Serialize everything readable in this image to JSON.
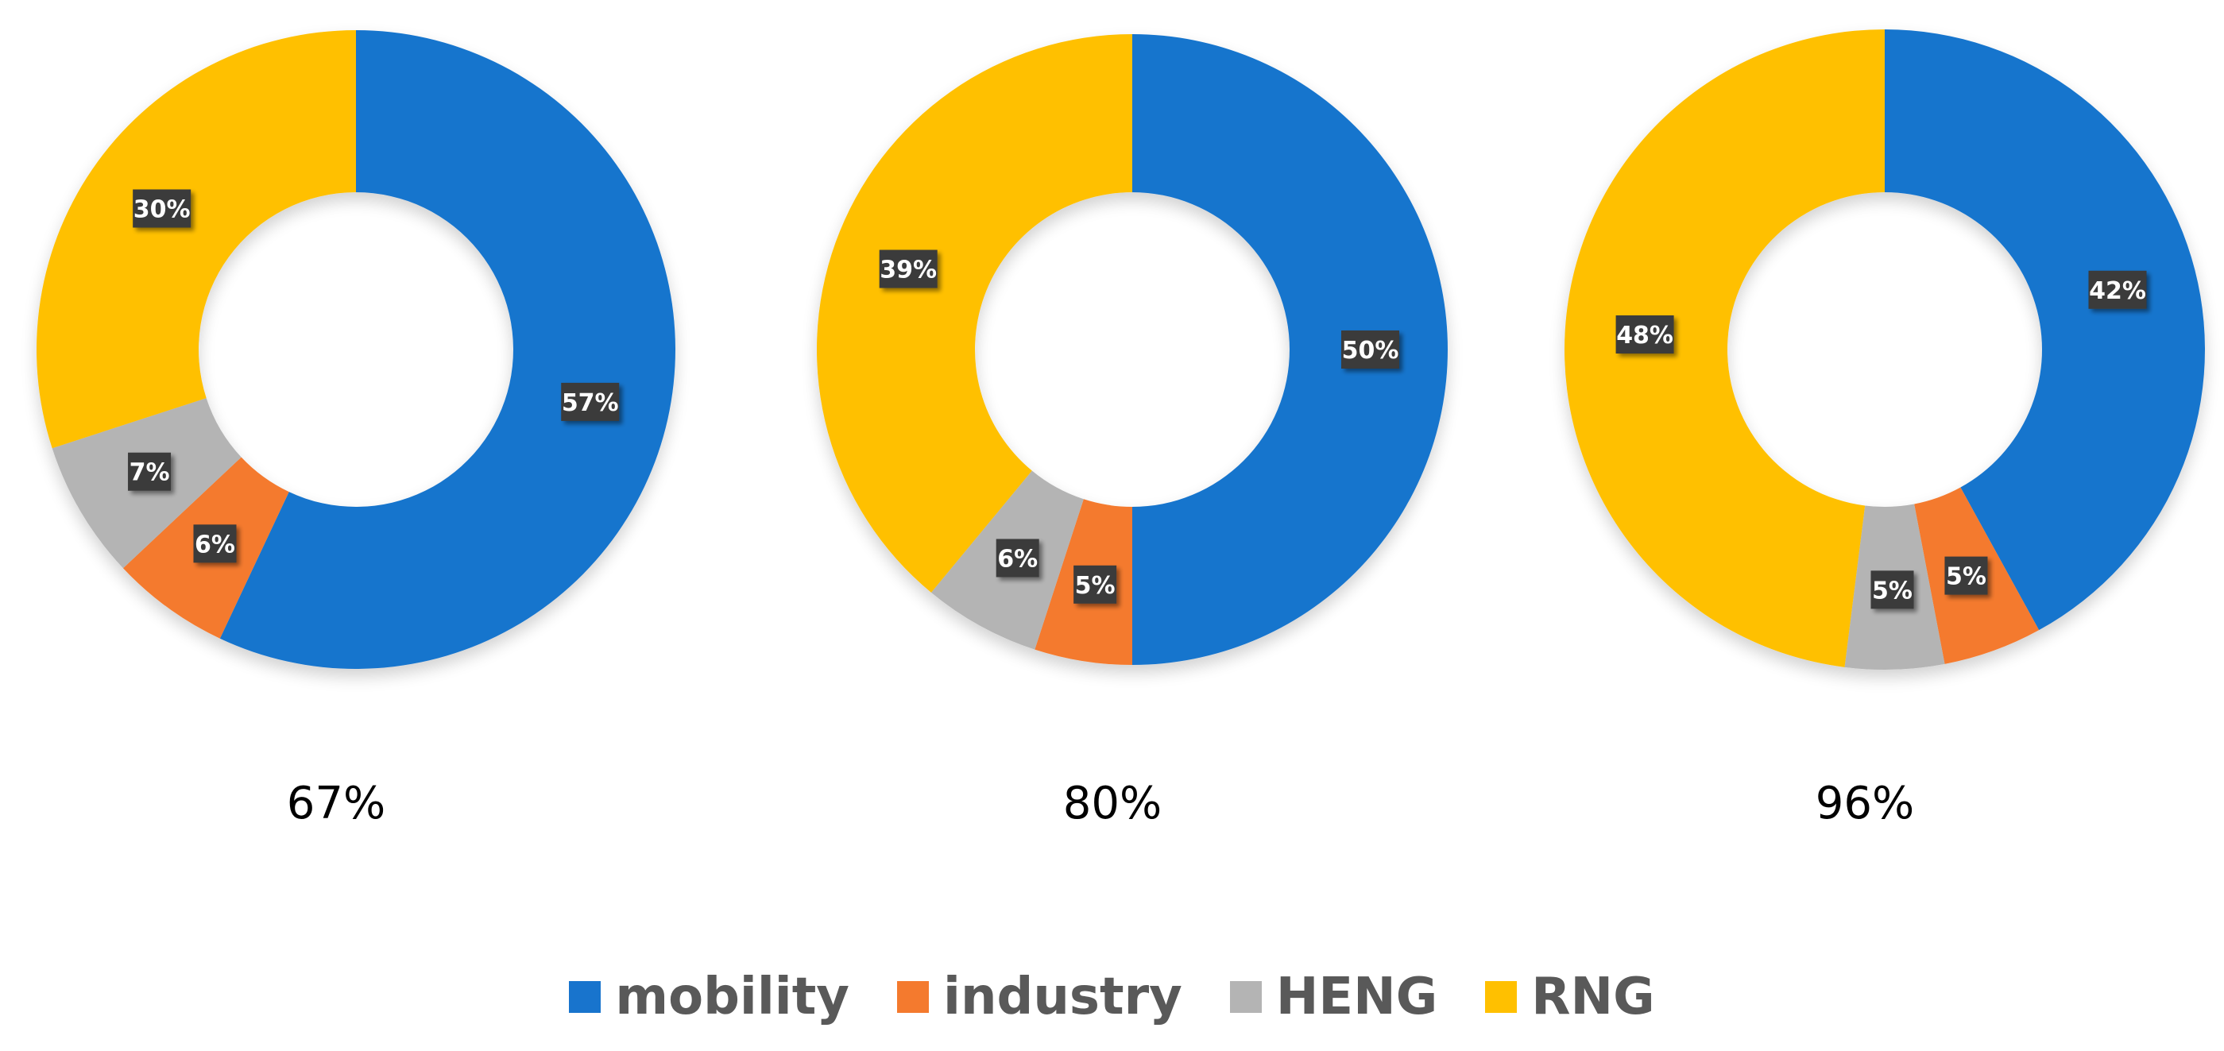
{
  "chart_data": [
    {
      "type": "pie",
      "variant": "donut",
      "caption": "67%",
      "slices": [
        {
          "category": "mobility",
          "value": 57,
          "label": "57%"
        },
        {
          "category": "industry",
          "value": 6,
          "label": "6%"
        },
        {
          "category": "HENG",
          "value": 7,
          "label": "7%"
        },
        {
          "category": "RNG",
          "value": 30,
          "label": "30%"
        }
      ]
    },
    {
      "type": "pie",
      "variant": "donut",
      "caption": "80%",
      "slices": [
        {
          "category": "mobility",
          "value": 50,
          "label": "50%"
        },
        {
          "category": "industry",
          "value": 5,
          "label": "5%"
        },
        {
          "category": "HENG",
          "value": 6,
          "label": "6%"
        },
        {
          "category": "RNG",
          "value": 39,
          "label": "39%"
        }
      ]
    },
    {
      "type": "pie",
      "variant": "donut",
      "caption": "96%",
      "slices": [
        {
          "category": "mobility",
          "value": 42,
          "label": "42%"
        },
        {
          "category": "industry",
          "value": 5,
          "label": "5%"
        },
        {
          "category": "HENG",
          "value": 5,
          "label": "5%"
        },
        {
          "category": "RNG",
          "value": 48,
          "label": "48%"
        }
      ]
    }
  ],
  "legend": {
    "placement": "bottom-center",
    "items": [
      {
        "label": "mobility",
        "color": "#1874CD"
      },
      {
        "label": "industry",
        "color": "#F47A2E"
      },
      {
        "label": "HENG",
        "color": "#B4B4B4"
      },
      {
        "label": "RNG",
        "color": "#FFC000"
      }
    ]
  },
  "colors": {
    "mobility": "#1874CD",
    "industry": "#F47A2E",
    "HENG": "#B4B4B4",
    "RNG": "#FFC000",
    "label_box": "#3A3A3A",
    "label_text": "#FFFFFF"
  }
}
